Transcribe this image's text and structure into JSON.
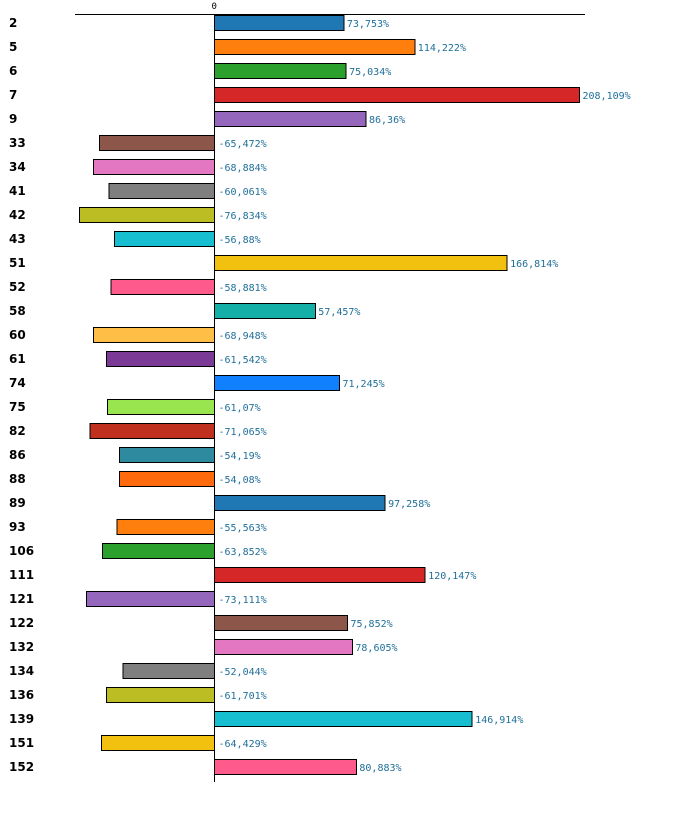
{
  "chart_data": {
    "type": "bar",
    "orientation": "horizontal",
    "title": "",
    "xlabel": "",
    "ylabel": "",
    "zero_label": "0",
    "value_suffix": "%",
    "xlim": [
      -100,
      240
    ],
    "grid": false,
    "legend": "none",
    "categories": [
      "2",
      "5",
      "6",
      "7",
      "9",
      "33",
      "34",
      "41",
      "42",
      "43",
      "51",
      "52",
      "58",
      "60",
      "61",
      "74",
      "75",
      "82",
      "86",
      "88",
      "89",
      "93",
      "106",
      "111",
      "121",
      "122",
      "132",
      "134",
      "136",
      "139",
      "151",
      "152"
    ],
    "values": [
      73.753,
      114.222,
      75.034,
      208.109,
      86.36,
      -65.472,
      -68.884,
      -60.061,
      -76.834,
      -56.88,
      166.814,
      -58.881,
      57.457,
      -68.948,
      -61.542,
      71.245,
      -61.07,
      -71.065,
      -54.19,
      -54.08,
      97.258,
      -55.563,
      -63.852,
      120.147,
      -73.111,
      75.852,
      78.605,
      -52.044,
      -61.701,
      146.914,
      -64.429,
      80.883
    ],
    "value_labels": [
      "73,753%",
      "114,222%",
      "75,034%",
      "208,109%",
      "86,36%",
      "-65,472%",
      "-68,884%",
      "-60,061%",
      "-76,834%",
      "-56,88%",
      "166,814%",
      "-58,881%",
      "57,457%",
      "-68,948%",
      "-61,542%",
      "71,245%",
      "-61,07%",
      "-71,065%",
      "-54,19%",
      "-54,08%",
      "97,258%",
      "-55,563%",
      "-63,852%",
      "120,147%",
      "-73,111%",
      "75,852%",
      "78,605%",
      "-52,044%",
      "-61,701%",
      "146,914%",
      "-64,429%",
      "80,883%"
    ],
    "colors": [
      "#1f77b4",
      "#ff7f0e",
      "#2ca02c",
      "#d62728",
      "#9467bd",
      "#8c564b",
      "#e377c2",
      "#7f7f7f",
      "#bcbd22",
      "#17becf",
      "#f2c10f",
      "#ff5a8c",
      "#14b0a8",
      "#ffbf47",
      "#7b3a96",
      "#1080ff",
      "#99e550",
      "#c0301e",
      "#2e8b9f",
      "#ff6a0d",
      "#1f77b4",
      "#ff7f0e",
      "#2ca02c",
      "#d62728",
      "#9467bd",
      "#8c564b",
      "#e377c2",
      "#7f7f7f",
      "#bcbd22",
      "#17becf",
      "#f2c10f",
      "#ff5a8c"
    ]
  }
}
